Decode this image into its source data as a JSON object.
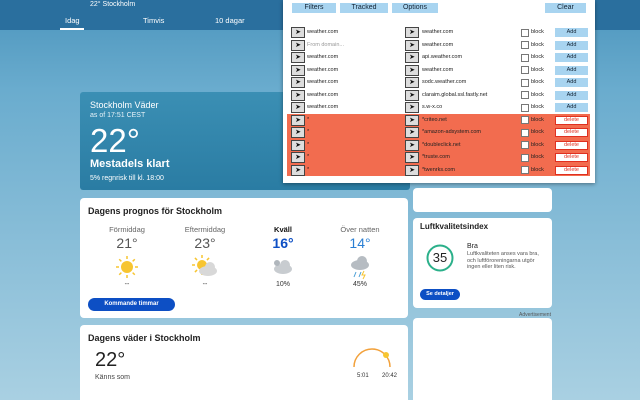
{
  "header": {
    "location": "22° Stockholm",
    "tabs": [
      "Idag",
      "Timvis",
      "10 dagar"
    ]
  },
  "panel": {
    "buttons": [
      "Filters",
      "Tracked",
      "Options",
      "Clear"
    ],
    "rows": [
      {
        "from": "weather.com",
        "to": "weather.com",
        "action": "block",
        "button": "Add",
        "color": "#ffffff"
      },
      {
        "from": "From domain...",
        "to": "weather.com",
        "action": "block",
        "button": "Add",
        "color": "#ffffff"
      },
      {
        "from": "weather.com",
        "to": "api.weather.com",
        "action": "block",
        "button": "Add",
        "color": "#ffffff"
      },
      {
        "from": "weather.com",
        "to": "weather.com",
        "action": "block",
        "button": "Add",
        "color": "#ffffff"
      },
      {
        "from": "weather.com",
        "to": "sodc.weather.com",
        "action": "block",
        "button": "Add",
        "color": "#ffffff"
      },
      {
        "from": "weather.com",
        "to": "claraim.global.ssl.fastly.net",
        "action": "block",
        "button": "Add",
        "color": "#ffffff"
      },
      {
        "from": "weather.com",
        "to": "s.w-x.co",
        "action": "block",
        "button": "Add",
        "color": "#ffffff"
      },
      {
        "from": "*",
        "to": "*criteo.net",
        "action": "block",
        "button": "delete",
        "color": "#f26c4f"
      },
      {
        "from": "*",
        "to": "*amazon-adsystem.com",
        "action": "block",
        "button": "delete",
        "color": "#f26c4f"
      },
      {
        "from": "*",
        "to": "*doubleclick.net",
        "action": "block",
        "button": "delete",
        "color": "#f26c4f"
      },
      {
        "from": "*",
        "to": "*truste.com",
        "action": "block",
        "button": "delete",
        "color": "#f26c4f"
      },
      {
        "from": "*",
        "to": "*twenrks.com",
        "action": "block",
        "button": "delete",
        "color": "#f26c4f"
      }
    ]
  },
  "current": {
    "title": "Stockholm Väder",
    "as_of": "as of 17:51 CEST",
    "temp": "22°",
    "condition": "Mestadels klart",
    "rain": "5% regnrisk till kl. 18:00"
  },
  "forecast": {
    "title": "Dagens prognos för Stockholm",
    "periods": [
      {
        "name": "Förmiddag",
        "temp": "21°",
        "precip": "--",
        "icon": "sun"
      },
      {
        "name": "Eftermiddag",
        "temp": "23°",
        "precip": "--",
        "icon": "sun-cloud"
      },
      {
        "name": "Kväll",
        "temp": "16°",
        "precip": "10%",
        "icon": "cloud"
      },
      {
        "name": "Över natten",
        "temp": "14°",
        "precip": "45%",
        "icon": "rain"
      }
    ],
    "button": "Kommande timmar"
  },
  "air_quality": {
    "title": "Luftkvalitetsindex",
    "index": "35",
    "level": "Bra",
    "description": "Luftkvaliteten anses vara bra, och luftföroreningarna utgör ingen eller liten risk.",
    "button": "Se detaljer"
  },
  "advertisement": "Advertisement",
  "today": {
    "title": "Dagens väder i Stockholm",
    "temp": "22°",
    "feels": "Känns som",
    "sunrise": "5:01",
    "sunset": "20:42"
  }
}
